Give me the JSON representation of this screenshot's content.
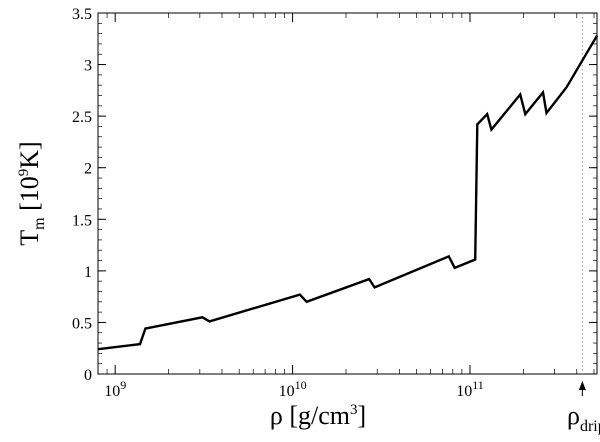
{
  "chart_data": {
    "type": "line",
    "title": "",
    "xscale": "log",
    "xlim": [
      800000000.0,
      520000000000.0
    ],
    "ylim": [
      0,
      3.5
    ],
    "grid": false,
    "xlabel": {
      "base": "ρ [g/cm",
      "sup": "3",
      "tail": "]"
    },
    "ylabel": {
      "base": "T",
      "sub": "m",
      "mid": " [10",
      "sup": "9",
      "tail": "K]"
    },
    "x_ticks": [
      {
        "value": 1000000000.0,
        "base": "10",
        "exp": "9"
      },
      {
        "value": 10000000000.0,
        "base": "10",
        "exp": "10"
      },
      {
        "value": 100000000000.0,
        "base": "10",
        "exp": "11"
      }
    ],
    "y_ticks": [
      {
        "value": 0,
        "label": "0"
      },
      {
        "value": 0.5,
        "label": "0.5"
      },
      {
        "value": 1,
        "label": "1"
      },
      {
        "value": 1.5,
        "label": "1.5"
      },
      {
        "value": 2,
        "label": "2"
      },
      {
        "value": 2.5,
        "label": "2.5"
      },
      {
        "value": 3,
        "label": "3"
      },
      {
        "value": 3.5,
        "label": "3.5"
      }
    ],
    "reference_line": {
      "x": 430000000000.0,
      "label": {
        "base": "ρ",
        "sub": "drip"
      }
    },
    "series": [
      {
        "x": [
          800000000.0,
          1380000000.0,
          1480000000.0,
          3100000000.0,
          3400000000.0,
          11000000000.0,
          12000000000.0,
          27000000000.0,
          29000000000.0,
          76000000000.0,
          82000000000.0,
          107000000000.0,
          110000000000.0,
          125000000000.0,
          132000000000.0,
          192000000000.0,
          205000000000.0,
          258000000000.0,
          270000000000.0,
          350000000000.0,
          520000000000.0
        ],
        "y": [
          0.24,
          0.29,
          0.44,
          0.55,
          0.51,
          0.77,
          0.7,
          0.92,
          0.84,
          1.14,
          1.03,
          1.11,
          2.42,
          2.52,
          2.37,
          2.71,
          2.52,
          2.73,
          2.53,
          2.78,
          3.28
        ]
      }
    ]
  }
}
